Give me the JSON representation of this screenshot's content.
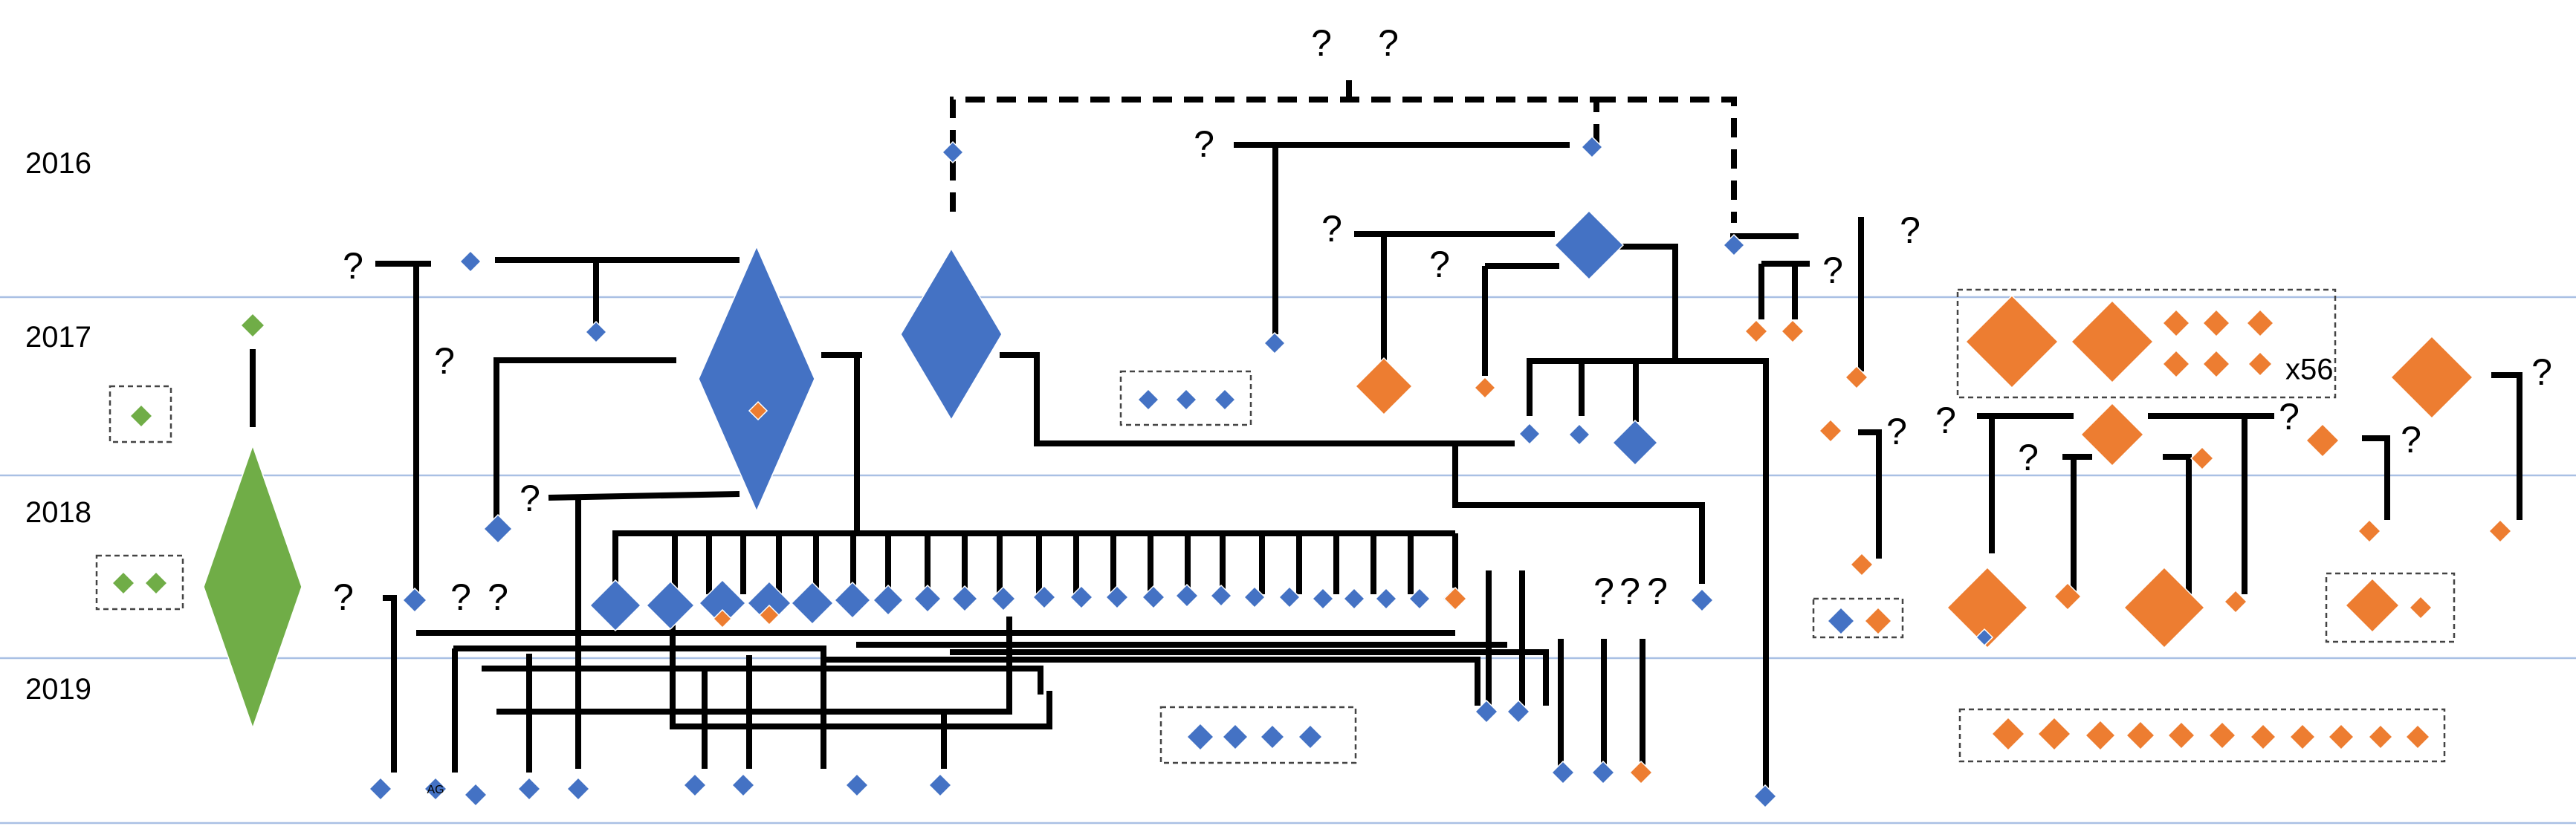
{
  "years": [
    "2016",
    "2017",
    "2018",
    "2019"
  ],
  "unknown_mark": "?",
  "count_label": "x56",
  "small_label": "AG",
  "colors": {
    "blue": "#4472C4",
    "orange": "#ED7D31",
    "green": "#70AD47",
    "line": "#000000",
    "gridline": "#A9C0E4"
  }
}
